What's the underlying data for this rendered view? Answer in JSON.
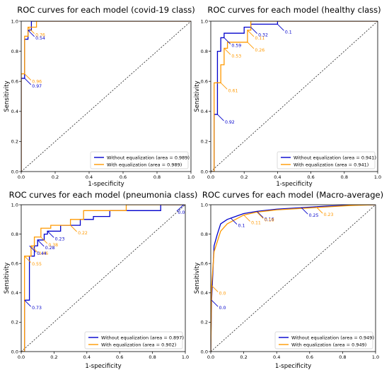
{
  "colors": {
    "without": "#0000cc",
    "with": "#ff9900",
    "diagonal": "#000000"
  },
  "chart_data": [
    {
      "type": "line",
      "title": "ROC curves for each model (covid-19 class)",
      "xlabel": "1-specificity",
      "ylabel": "Sensitivity",
      "xlim": [
        0,
        1
      ],
      "ylim": [
        0,
        1
      ],
      "xticks": [
        "0.0",
        "0.2",
        "0.4",
        "0.6",
        "0.8",
        "1.0"
      ],
      "yticks": [
        "0.0",
        "0.2",
        "0.4",
        "0.6",
        "0.8",
        "1.0"
      ],
      "legend_position": "bottom-right",
      "series": [
        {
          "name": "Without equalization (area = 0.989)",
          "color_key": "without",
          "x": [
            0,
            0,
            0.02,
            0.02,
            0.04,
            0.04,
            0.06,
            0.06,
            1.0
          ],
          "y": [
            0,
            0.62,
            0.62,
            0.88,
            0.88,
            0.94,
            0.94,
            1.0,
            1.0
          ]
        },
        {
          "name": "With equalization (area = 0.989)",
          "color_key": "with",
          "x": [
            0,
            0,
            0.02,
            0.02,
            0.04,
            0.04,
            0.09,
            0.09,
            1.0
          ],
          "y": [
            0,
            0.65,
            0.65,
            0.9,
            0.9,
            0.96,
            0.96,
            1.0,
            1.0
          ]
        }
      ],
      "annotations": [
        {
          "text": "0.76",
          "series": "with",
          "x": 0.04,
          "y": 0.96
        },
        {
          "text": "0.54",
          "series": "without",
          "x": 0.04,
          "y": 0.94
        },
        {
          "text": "0.96",
          "series": "with",
          "x": 0.02,
          "y": 0.65
        },
        {
          "text": "0.97",
          "series": "without",
          "x": 0.02,
          "y": 0.62
        }
      ]
    },
    {
      "type": "line",
      "title": "ROC curves for each model (healthy class)",
      "xlabel": "1-specificity",
      "ylabel": "Sensitivity",
      "xlim": [
        0,
        1
      ],
      "ylim": [
        0,
        1
      ],
      "xticks": [
        "0.0",
        "0.2",
        "0.4",
        "0.6",
        "0.8",
        "1.0"
      ],
      "yticks": [
        "0.0",
        "0.2",
        "0.4",
        "0.6",
        "0.8",
        "1.0"
      ],
      "legend_position": "bottom-right",
      "series": [
        {
          "name": "Without equalization (area = 0.941)",
          "color_key": "without",
          "x": [
            0,
            0.02,
            0.02,
            0.04,
            0.04,
            0.06,
            0.06,
            0.08,
            0.08,
            0.12,
            0.12,
            0.2,
            0.2,
            0.24,
            0.24,
            0.4,
            0.4,
            1.0
          ],
          "y": [
            0,
            0,
            0.38,
            0.38,
            0.8,
            0.8,
            0.89,
            0.89,
            0.92,
            0.92,
            0.92,
            0.92,
            0.96,
            0.96,
            0.98,
            0.98,
            1.0,
            1.0
          ]
        },
        {
          "name": "With equalization (area = 0.941)",
          "color_key": "with",
          "x": [
            0,
            0.02,
            0.02,
            0.06,
            0.06,
            0.08,
            0.08,
            0.1,
            0.1,
            0.22,
            0.22,
            0.24,
            0.24,
            1.0
          ],
          "y": [
            0,
            0,
            0.59,
            0.59,
            0.71,
            0.71,
            0.82,
            0.82,
            0.86,
            0.86,
            0.94,
            0.94,
            1.0,
            1.0
          ]
        }
      ],
      "annotations": [
        {
          "text": "0.1",
          "series": "without",
          "x": 0.4,
          "y": 0.98
        },
        {
          "text": "0.11",
          "series": "with",
          "x": 0.22,
          "y": 0.94
        },
        {
          "text": "0.32",
          "series": "without",
          "x": 0.24,
          "y": 0.96
        },
        {
          "text": "0.26",
          "series": "with",
          "x": 0.22,
          "y": 0.86
        },
        {
          "text": "0.59",
          "series": "without",
          "x": 0.08,
          "y": 0.89
        },
        {
          "text": "0.53",
          "series": "with",
          "x": 0.08,
          "y": 0.82
        },
        {
          "text": "0.61",
          "series": "with",
          "x": 0.06,
          "y": 0.59
        },
        {
          "text": "0.92",
          "series": "without",
          "x": 0.04,
          "y": 0.38
        }
      ]
    },
    {
      "type": "line",
      "title": "ROC curves for each model (pneumonia class)",
      "xlabel": "1-specificity",
      "ylabel": "Sensitivity",
      "xlim": [
        0,
        1
      ],
      "ylim": [
        0,
        1
      ],
      "xticks": [
        "0.0",
        "0.2",
        "0.4",
        "0.6",
        "0.8",
        "1.0"
      ],
      "yticks": [
        "0.0",
        "0.2",
        "0.4",
        "0.6",
        "0.8",
        "1.0"
      ],
      "legend_position": "bottom-right",
      "series": [
        {
          "name": "Without equalization (area = 0.897)",
          "color_key": "without",
          "x": [
            0,
            0.02,
            0.02,
            0.05,
            0.05,
            0.08,
            0.08,
            0.1,
            0.1,
            0.14,
            0.14,
            0.16,
            0.16,
            0.24,
            0.24,
            0.36,
            0.36,
            0.44,
            0.44,
            0.54,
            0.54,
            0.85,
            0.85,
            1.0
          ],
          "y": [
            0,
            0,
            0.35,
            0.35,
            0.65,
            0.65,
            0.72,
            0.72,
            0.76,
            0.76,
            0.8,
            0.8,
            0.82,
            0.82,
            0.86,
            0.86,
            0.9,
            0.9,
            0.92,
            0.92,
            0.96,
            0.96,
            1.0,
            1.0
          ]
        },
        {
          "name": "With equalization (area = 0.902)",
          "color_key": "with",
          "x": [
            0,
            0.02,
            0.02,
            0.06,
            0.06,
            0.08,
            0.08,
            0.12,
            0.12,
            0.18,
            0.18,
            0.3,
            0.3,
            0.38,
            0.38,
            0.64,
            0.64,
            1.0
          ],
          "y": [
            0,
            0,
            0.65,
            0.65,
            0.72,
            0.72,
            0.78,
            0.78,
            0.84,
            0.84,
            0.86,
            0.86,
            0.9,
            0.9,
            0.96,
            0.96,
            1.0,
            1.0
          ]
        }
      ],
      "annotations": [
        {
          "text": "0.0",
          "series": "without",
          "x": 0.99,
          "y": 1.0
        },
        {
          "text": "0.22",
          "series": "with",
          "x": 0.3,
          "y": 0.86
        },
        {
          "text": "0.23",
          "series": "without",
          "x": 0.16,
          "y": 0.82
        },
        {
          "text": "0.38",
          "series": "with",
          "x": 0.12,
          "y": 0.78
        },
        {
          "text": "0.28",
          "series": "without",
          "x": 0.1,
          "y": 0.76
        },
        {
          "text": "0.46",
          "series": "with",
          "x": 0.06,
          "y": 0.72
        },
        {
          "text": "0.44",
          "series": "without",
          "x": 0.05,
          "y": 0.72
        },
        {
          "text": "0.55",
          "series": "with",
          "x": 0.02,
          "y": 0.65
        },
        {
          "text": "0.73",
          "series": "without",
          "x": 0.02,
          "y": 0.35
        }
      ]
    },
    {
      "type": "line",
      "title": "ROC curves for each model (Macro-average)",
      "xlabel": "1-specificity",
      "ylabel": "Sensitivity",
      "xlim": [
        0,
        1
      ],
      "ylim": [
        0,
        1
      ],
      "xticks": [
        "0.0",
        "0.2",
        "0.4",
        "0.6",
        "0.8",
        "1.0"
      ],
      "yticks": [
        "0.0",
        "0.2",
        "0.4",
        "0.6",
        "0.8",
        "1.0"
      ],
      "legend_position": "bottom-right",
      "series": [
        {
          "name": "Without equalization (area = 0.949)",
          "color_key": "without",
          "x": [
            0,
            0.005,
            0.02,
            0.04,
            0.06,
            0.1,
            0.15,
            0.2,
            0.28,
            0.4,
            0.55,
            0.7,
            0.85,
            1.0
          ],
          "y": [
            0,
            0.35,
            0.72,
            0.8,
            0.87,
            0.9,
            0.92,
            0.94,
            0.955,
            0.97,
            0.98,
            0.99,
            0.997,
            1.0
          ]
        },
        {
          "name": "With equalization (area = 0.949)",
          "color_key": "with",
          "x": [
            0,
            0.005,
            0.02,
            0.04,
            0.06,
            0.1,
            0.15,
            0.2,
            0.28,
            0.4,
            0.55,
            0.7,
            0.85,
            1.0
          ],
          "y": [
            0,
            0.45,
            0.68,
            0.75,
            0.82,
            0.87,
            0.9,
            0.93,
            0.95,
            0.965,
            0.975,
            0.985,
            0.995,
            1.0
          ]
        }
      ],
      "annotations": [
        {
          "text": "0.23",
          "series": "with",
          "x": 0.64,
          "y": 0.985
        },
        {
          "text": "0.25",
          "series": "without",
          "x": 0.55,
          "y": 0.98
        },
        {
          "text": "0.16",
          "series": "without",
          "x": 0.28,
          "y": 0.955
        },
        {
          "text": "0.18",
          "series": "with",
          "x": 0.28,
          "y": 0.95
        },
        {
          "text": "0.11",
          "series": "with",
          "x": 0.2,
          "y": 0.93
        },
        {
          "text": "0.1",
          "series": "without",
          "x": 0.12,
          "y": 0.91
        },
        {
          "text": "0.0",
          "series": "with",
          "x": 0.005,
          "y": 0.45
        },
        {
          "text": "0.0",
          "series": "without",
          "x": 0.005,
          "y": 0.35
        }
      ]
    }
  ]
}
